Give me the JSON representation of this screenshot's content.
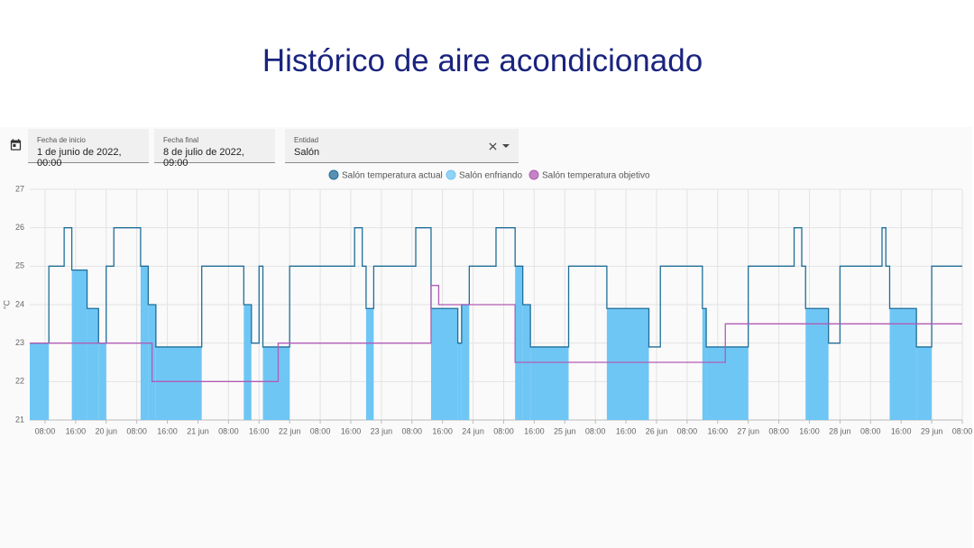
{
  "header": {
    "title": "Histórico de aire acondicionado"
  },
  "filters": [
    {
      "label": "Fecha de inicio",
      "value": "1 de junio de 2022, 00:00"
    },
    {
      "label": "Fecha final",
      "value": "8 de julio de 2022, 09:00"
    },
    {
      "label": "Entidad",
      "value": "Salón"
    }
  ],
  "chart_data": {
    "type": "step",
    "y_label": "°C",
    "ylim": [
      21,
      27
    ],
    "yticks": [
      21,
      22,
      23,
      24,
      25,
      26,
      27
    ],
    "xlim": [
      "2022-06-19 04:00",
      "2022-06-29 08:00"
    ],
    "grid": true,
    "x": [
      "2022-06-19 04:00",
      "2022-06-19 09:00",
      "2022-06-19 13:00",
      "2022-06-19 15:00",
      "2022-06-19 19:00",
      "2022-06-19 22:00",
      "2022-06-20 00:00",
      "2022-06-20 02:00",
      "2022-06-20 09:00",
      "2022-06-20 11:00",
      "2022-06-20 13:00",
      "2022-06-21 01:00",
      "2022-06-21 12:00",
      "2022-06-21 14:00",
      "2022-06-21 16:00",
      "2022-06-21 17:00",
      "2022-06-22 00:00",
      "2022-06-22 17:00",
      "2022-06-22 19:00",
      "2022-06-22 20:00",
      "2022-06-22 22:00",
      "2022-06-23 09:00",
      "2022-06-23 13:00",
      "2022-06-23 20:00",
      "2022-06-23 21:00",
      "2022-06-23 23:00",
      "2022-06-24 06:00",
      "2022-06-24 11:00",
      "2022-06-24 13:00",
      "2022-06-24 15:00",
      "2022-06-25 01:00",
      "2022-06-25 11:00",
      "2022-06-25 22:00",
      "2022-06-26 01:00",
      "2022-06-26 12:00",
      "2022-06-26 13:00",
      "2022-06-27 00:00",
      "2022-06-27 12:00",
      "2022-06-27 14:00",
      "2022-06-27 15:00",
      "2022-06-27 21:00",
      "2022-06-28 00:00",
      "2022-06-28 11:00",
      "2022-06-28 12:00",
      "2022-06-28 13:00",
      "2022-06-28 20:00",
      "2022-06-29 00:00",
      "2022-06-29 08:00"
    ],
    "series": [
      {
        "name": "Salón temperatura actual",
        "color": "#1f6e99",
        "style": "line",
        "values": [
          23,
          25,
          26,
          24.9,
          23.9,
          23,
          25,
          26,
          25,
          24,
          22.9,
          25,
          24,
          23,
          25,
          22.9,
          25,
          26,
          25,
          23.9,
          25,
          26,
          23.9,
          23,
          24,
          25,
          26,
          25,
          24,
          22.9,
          25,
          23.9,
          22.9,
          25,
          23.9,
          22.9,
          25,
          26,
          25,
          23.9,
          23,
          25,
          26,
          25,
          23.9,
          22.9,
          25,
          25
        ]
      },
      {
        "name": "Salón enfriando",
        "color": "#6ec6f5",
        "style": "area",
        "values": [
          23,
          null,
          null,
          24.9,
          23.9,
          23,
          null,
          null,
          25,
          24,
          22.9,
          null,
          24,
          null,
          null,
          22.9,
          null,
          null,
          null,
          23.9,
          null,
          null,
          23.9,
          23,
          24,
          null,
          null,
          25,
          24,
          22.9,
          null,
          23.9,
          null,
          null,
          23.9,
          22.9,
          null,
          null,
          null,
          23.9,
          null,
          null,
          null,
          null,
          23.9,
          22.9,
          null,
          null
        ]
      },
      {
        "name": "Salón temperatura objetivo",
        "color": "#b05cb5",
        "style": "line",
        "x": [
          "2022-06-19 04:00",
          "2022-06-20 12:00",
          "2022-06-21 21:00",
          "2022-06-23 13:00",
          "2022-06-23 15:00",
          "2022-06-24 11:00",
          "2022-06-26 18:00",
          "2022-06-29 08:00"
        ],
        "values": [
          23,
          22,
          23,
          24.5,
          24,
          22.5,
          23.5,
          23.5
        ]
      }
    ],
    "xticks": [
      {
        "value": "2022-06-19 08:00",
        "label": "08:00"
      },
      {
        "value": "2022-06-19 16:00",
        "label": "16:00"
      },
      {
        "value": "2022-06-20 00:00",
        "label": "20 jun"
      },
      {
        "value": "2022-06-20 08:00",
        "label": "08:00"
      },
      {
        "value": "2022-06-20 16:00",
        "label": "16:00"
      },
      {
        "value": "2022-06-21 00:00",
        "label": "21 jun"
      },
      {
        "value": "2022-06-21 08:00",
        "label": "08:00"
      },
      {
        "value": "2022-06-21 16:00",
        "label": "16:00"
      },
      {
        "value": "2022-06-22 00:00",
        "label": "22 jun"
      },
      {
        "value": "2022-06-22 08:00",
        "label": "08:00"
      },
      {
        "value": "2022-06-22 16:00",
        "label": "16:00"
      },
      {
        "value": "2022-06-23 00:00",
        "label": "23 jun"
      },
      {
        "value": "2022-06-23 08:00",
        "label": "08:00"
      },
      {
        "value": "2022-06-23 16:00",
        "label": "16:00"
      },
      {
        "value": "2022-06-24 00:00",
        "label": "24 jun"
      },
      {
        "value": "2022-06-24 08:00",
        "label": "08:00"
      },
      {
        "value": "2022-06-24 16:00",
        "label": "16:00"
      },
      {
        "value": "2022-06-25 00:00",
        "label": "25 jun"
      },
      {
        "value": "2022-06-25 08:00",
        "label": "08:00"
      },
      {
        "value": "2022-06-25 16:00",
        "label": "16:00"
      },
      {
        "value": "2022-06-26 00:00",
        "label": "26 jun"
      },
      {
        "value": "2022-06-26 08:00",
        "label": "08:00"
      },
      {
        "value": "2022-06-26 16:00",
        "label": "16:00"
      },
      {
        "value": "2022-06-27 00:00",
        "label": "27 jun"
      },
      {
        "value": "2022-06-27 08:00",
        "label": "08:00"
      },
      {
        "value": "2022-06-27 16:00",
        "label": "16:00"
      },
      {
        "value": "2022-06-28 00:00",
        "label": "28 jun"
      },
      {
        "value": "2022-06-28 08:00",
        "label": "08:00"
      },
      {
        "value": "2022-06-28 16:00",
        "label": "16:00"
      },
      {
        "value": "2022-06-29 00:00",
        "label": "29 jun"
      },
      {
        "value": "2022-06-29 08:00",
        "label": "08:00"
      }
    ]
  }
}
